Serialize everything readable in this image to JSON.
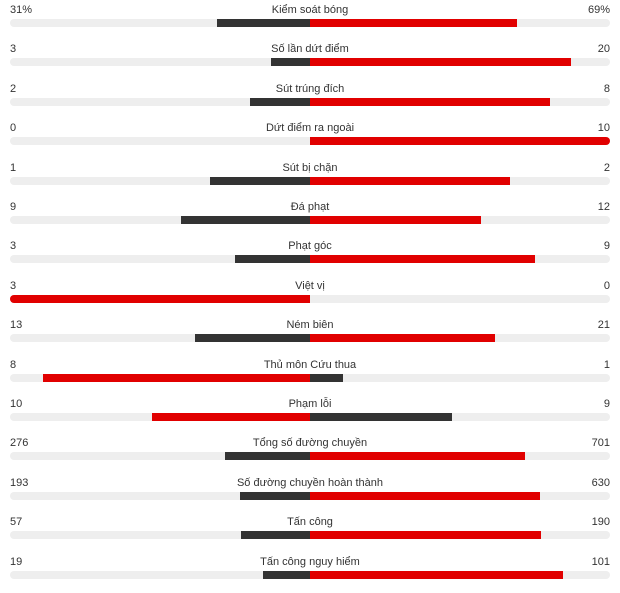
{
  "chart_data": {
    "type": "bar",
    "colors": {
      "home": "#333333",
      "away": "#e10000",
      "track": "#eeeeee"
    },
    "rows": [
      {
        "label": "Kiểm soát bóng",
        "left": "31%",
        "right": "69%",
        "left_value": 31,
        "right_value": 69
      },
      {
        "label": "Số lần dứt điểm",
        "left": "3",
        "right": "20",
        "left_value": 3,
        "right_value": 20
      },
      {
        "label": "Sút trúng đích",
        "left": "2",
        "right": "8",
        "left_value": 2,
        "right_value": 8
      },
      {
        "label": "Dứt điểm ra ngoài",
        "left": "0",
        "right": "10",
        "left_value": 0,
        "right_value": 10
      },
      {
        "label": "Sút bị chặn",
        "left": "1",
        "right": "2",
        "left_value": 1,
        "right_value": 2
      },
      {
        "label": "Đá phạt",
        "left": "9",
        "right": "12",
        "left_value": 9,
        "right_value": 12
      },
      {
        "label": "Phạt góc",
        "left": "3",
        "right": "9",
        "left_value": 3,
        "right_value": 9
      },
      {
        "label": "Việt vị",
        "left": "3",
        "right": "0",
        "left_value": 3,
        "right_value": 0
      },
      {
        "label": "Ném biên",
        "left": "13",
        "right": "21",
        "left_value": 13,
        "right_value": 21
      },
      {
        "label": "Thủ môn Cứu thua",
        "left": "8",
        "right": "1",
        "left_value": 8,
        "right_value": 1
      },
      {
        "label": "Phạm lỗi",
        "left": "10",
        "right": "9",
        "left_value": 10,
        "right_value": 9
      },
      {
        "label": "Tổng số đường chuyền",
        "left": "276",
        "right": "701",
        "left_value": 276,
        "right_value": 701
      },
      {
        "label": "Số đường chuyền hoàn thành",
        "left": "193",
        "right": "630",
        "left_value": 193,
        "right_value": 630
      },
      {
        "label": "Tấn công",
        "left": "57",
        "right": "190",
        "left_value": 57,
        "right_value": 190
      },
      {
        "label": "Tấn công nguy hiểm",
        "left": "19",
        "right": "101",
        "left_value": 19,
        "right_value": 101
      }
    ]
  }
}
